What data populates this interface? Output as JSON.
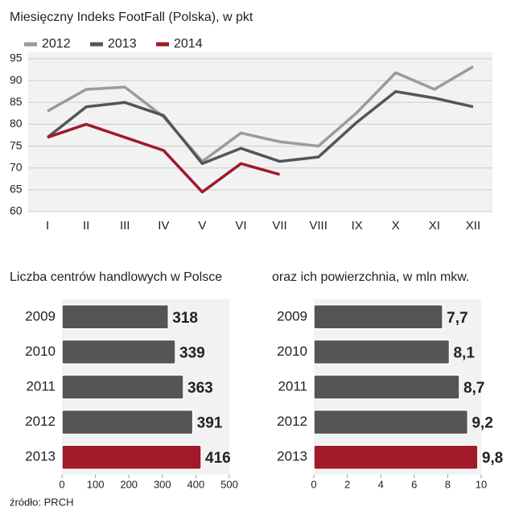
{
  "chart_data": [
    {
      "type": "line",
      "title": "Miesięczny Indeks FootFall (Polska), w pkt",
      "categories": [
        "I",
        "II",
        "III",
        "IV",
        "V",
        "VI",
        "VII",
        "VIII",
        "IX",
        "X",
        "XI",
        "XII"
      ],
      "series": [
        {
          "name": "2012",
          "color": "#9b9b9b",
          "values": [
            83,
            88,
            88.5,
            81.7,
            71.5,
            78,
            76,
            75,
            82.7,
            91.8,
            88,
            93.2
          ]
        },
        {
          "name": "2013",
          "color": "#555555",
          "values": [
            77,
            84,
            85,
            82,
            71,
            74.5,
            71.5,
            72.5,
            80.5,
            87.5,
            86,
            84
          ]
        },
        {
          "name": "2014",
          "color": "#a01a2a",
          "values": [
            77,
            80,
            77,
            74,
            64.5,
            71,
            68.5,
            null,
            null,
            null,
            null,
            null
          ]
        }
      ],
      "ylim": [
        60,
        95
      ],
      "yticks": [
        60,
        65,
        70,
        75,
        80,
        85,
        90,
        95
      ],
      "grid": true,
      "legend": "top-left"
    },
    {
      "type": "bar",
      "title": "Liczba centrów handlowych w Polsce",
      "categories": [
        "2009",
        "2010",
        "2011",
        "2012",
        "2013"
      ],
      "values": [
        318,
        339,
        363,
        391,
        416
      ],
      "colors": [
        "#555555",
        "#555555",
        "#555555",
        "#555555",
        "#a01a2a"
      ],
      "xlim": [
        0,
        500
      ],
      "xticks": [
        0,
        100,
        200,
        300,
        400,
        500
      ]
    },
    {
      "type": "bar",
      "title": "oraz ich powierzchnia, w mln mkw.",
      "categories": [
        "2009",
        "2010",
        "2011",
        "2012",
        "2013"
      ],
      "values": [
        7.7,
        8.1,
        8.7,
        9.2,
        9.8
      ],
      "value_labels": [
        "7,7",
        "8,1",
        "8,7",
        "9,2",
        "9,8"
      ],
      "colors": [
        "#555555",
        "#555555",
        "#555555",
        "#555555",
        "#a01a2a"
      ],
      "xlim": [
        0,
        10
      ],
      "xticks": [
        0,
        2,
        4,
        6,
        8,
        10
      ]
    }
  ],
  "source": "źródło: PRCH"
}
